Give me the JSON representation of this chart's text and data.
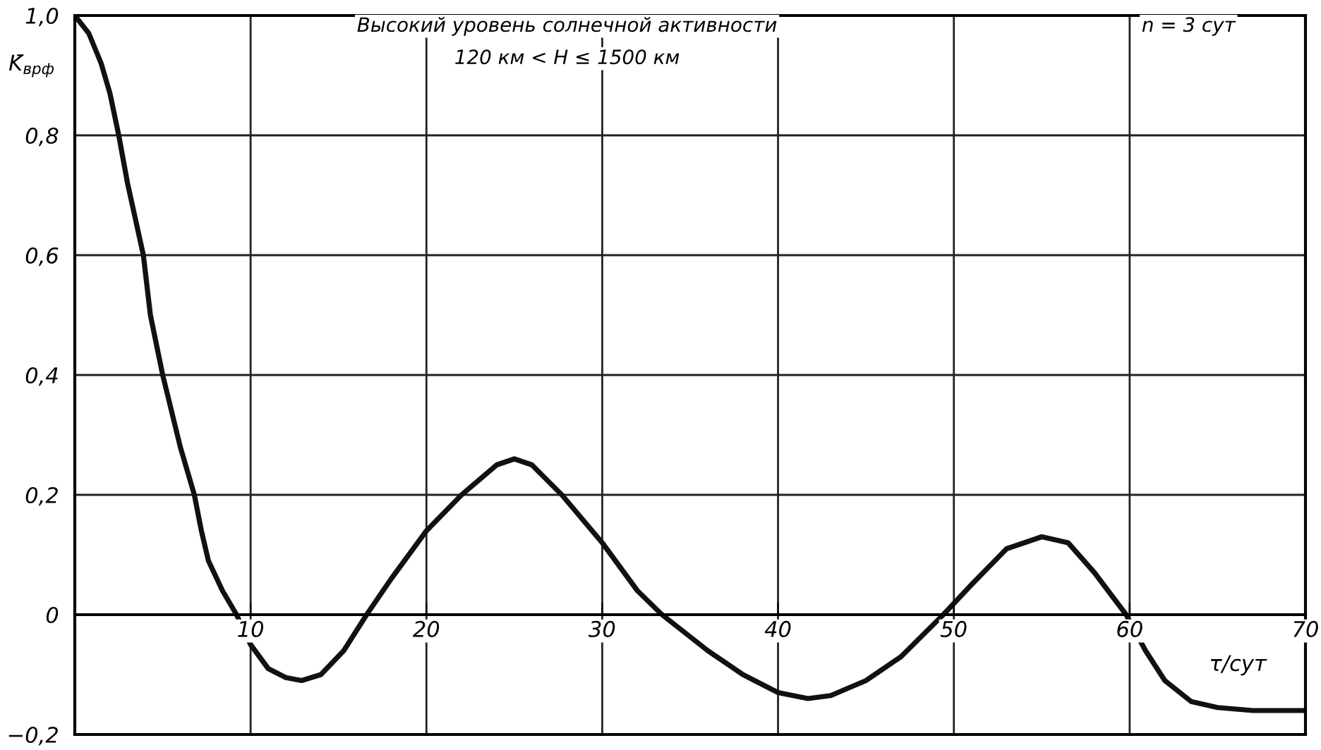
{
  "chart_data": {
    "type": "line",
    "ylabel": "K̄$_{врф}$",
    "xlabel": "τ/сут",
    "annotations": [
      "Высокий уровень солнечной активности",
      "120 км < H ≤ 1500 км",
      "n = 3 сут"
    ],
    "series": [
      {
        "color": "#111111",
        "x": [
          0,
          0.8,
          1.5,
          2.0,
          2.5,
          3.0,
          3.9,
          4.3,
          5.0,
          6.0,
          6.8,
          7.2,
          7.6,
          8.4,
          9.2,
          10,
          11,
          12,
          12.9,
          14,
          15.3,
          16.6,
          18,
          20,
          22,
          24,
          25,
          26,
          27.7,
          30,
          32,
          33.4,
          36,
          38,
          40,
          41.7,
          43,
          45,
          47,
          49.4,
          51,
          53,
          55,
          56.5,
          58,
          59.8,
          60.9,
          62,
          63.5,
          65,
          67,
          70
        ],
        "values": [
          1.0,
          0.97,
          0.92,
          0.87,
          0.8,
          0.72,
          0.6,
          0.5,
          0.4,
          0.28,
          0.2,
          0.14,
          0.09,
          0.04,
          0,
          -0.05,
          -0.09,
          -0.105,
          -0.11,
          -0.1,
          -0.06,
          0,
          0.06,
          0.14,
          0.2,
          0.25,
          0.26,
          0.25,
          0.2,
          0.12,
          0.04,
          0,
          -0.06,
          -0.1,
          -0.13,
          -0.14,
          -0.135,
          -0.11,
          -0.07,
          0,
          0.05,
          0.11,
          0.13,
          0.12,
          0.07,
          0,
          -0.06,
          -0.11,
          -0.145,
          -0.155,
          -0.16,
          -0.16
        ]
      }
    ],
    "xlim": [
      0,
      70
    ],
    "xticks": [
      10,
      20,
      30,
      40,
      50,
      60,
      70
    ],
    "ylim": [
      -0.2,
      1.0
    ],
    "yticks": [
      {
        "value": -0.2,
        "label": "−0,2"
      },
      {
        "value": 0,
        "label": "0"
      },
      {
        "value": 0.2,
        "label": "0,2"
      },
      {
        "value": 0.4,
        "label": "0,4"
      },
      {
        "value": 0.6,
        "label": "0,6"
      },
      {
        "value": 0.8,
        "label": "0,8"
      },
      {
        "value": 1.0,
        "label": "1,0"
      }
    ],
    "grid": true,
    "legend": false,
    "marker": "none",
    "line_style": "solid"
  }
}
